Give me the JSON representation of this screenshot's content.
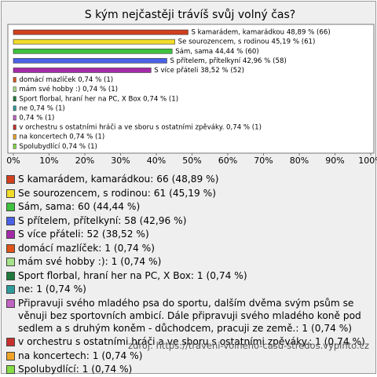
{
  "chart_data": {
    "type": "bar",
    "orientation": "horizontal",
    "title": "S kým nejčastěji trávíš svůj volný čas?",
    "values": [
      48.89,
      45.19,
      44.44,
      42.96,
      38.52,
      0.74,
      0.74,
      0.74,
      0.74,
      0.74,
      0.74,
      0.74,
      0.74
    ],
    "value_labels": [
      "S kamarádem, kamarádkou 48,89 % (66)",
      "Se sourozencem, s rodinou 45,19 % (61)",
      "Sám, sama 44,44 % (60)",
      "S přítelem, přítelkyní 42,96 % (58)",
      "S více přáteli 38,52 % (52)",
      "domácí mazlíček 0,74 % (1)",
      "mám své hobby :) 0,74 % (1)",
      "Sport florbal, hraní her na PC,  X Box 0,74 % (1)",
      "ne 0,74 % (1)",
      "0,74 % (1)",
      "v orchestru s ostatními hráči a ve sboru s ostatními zpěváky. 0,74 % (1)",
      "na koncertech 0,74 % (1)",
      "Spolubydlící 0,74 % (1)"
    ],
    "legend": [
      "S kamarádem, kamarádkou: 66 (48,89 %)",
      "Se sourozencem, s rodinou: 61 (45,19 %)",
      "Sám, sama: 60 (44,44 %)",
      "S přítelem, přítelkyní: 58 (42,96 %)",
      "S více přáteli: 52 (38,52 %)",
      "domácí mazlíček: 1 (0,74 %)",
      "mám své hobby :): 1 (0,74 %)",
      "Sport florbal, hraní her na PC,  X Box: 1 (0,74 %)",
      "ne: 1 (0,74 %)",
      "Připravuji svého mladého psa do sportu, dalším dvěma svým psům se věnuji bez sportovních ambicí. Dále připravuji svého mladého koně pod sedlem a s druhým koněm - důchodcem, pracuji ze země.: 1 (0,74 %)",
      "v orchestru s ostatními hráči a ve sboru s ostatními zpěváky.: 1 (0,74 %)",
      "na koncertech: 1 (0,74 %)",
      "Spolubydlící: 1 (0,74 %)"
    ],
    "colors": [
      "#d2401e",
      "#f2dc2a",
      "#3fc23f",
      "#4a62e6",
      "#a42aa8",
      "#e0541a",
      "#a6e38a",
      "#1f7a3c",
      "#2e9c9c",
      "#c064c4",
      "#c8302c",
      "#f0a428",
      "#86dc44"
    ],
    "xlim": [
      0,
      100
    ],
    "xticks": [
      {
        "value": 0,
        "label": "0%"
      },
      {
        "value": 10,
        "label": "10%"
      },
      {
        "value": 20,
        "label": "20%"
      },
      {
        "value": 30,
        "label": "30%"
      },
      {
        "value": 40,
        "label": "40%"
      },
      {
        "value": 50,
        "label": "50%"
      },
      {
        "value": 60,
        "label": "60%"
      },
      {
        "value": 70,
        "label": "70%"
      },
      {
        "value": 80,
        "label": "80%"
      },
      {
        "value": 90,
        "label": "90%"
      },
      {
        "value": 100,
        "label": "100%"
      }
    ],
    "source": "zdroj: https://traveni-volneho-casu-stredos.vyplnto.cz"
  }
}
